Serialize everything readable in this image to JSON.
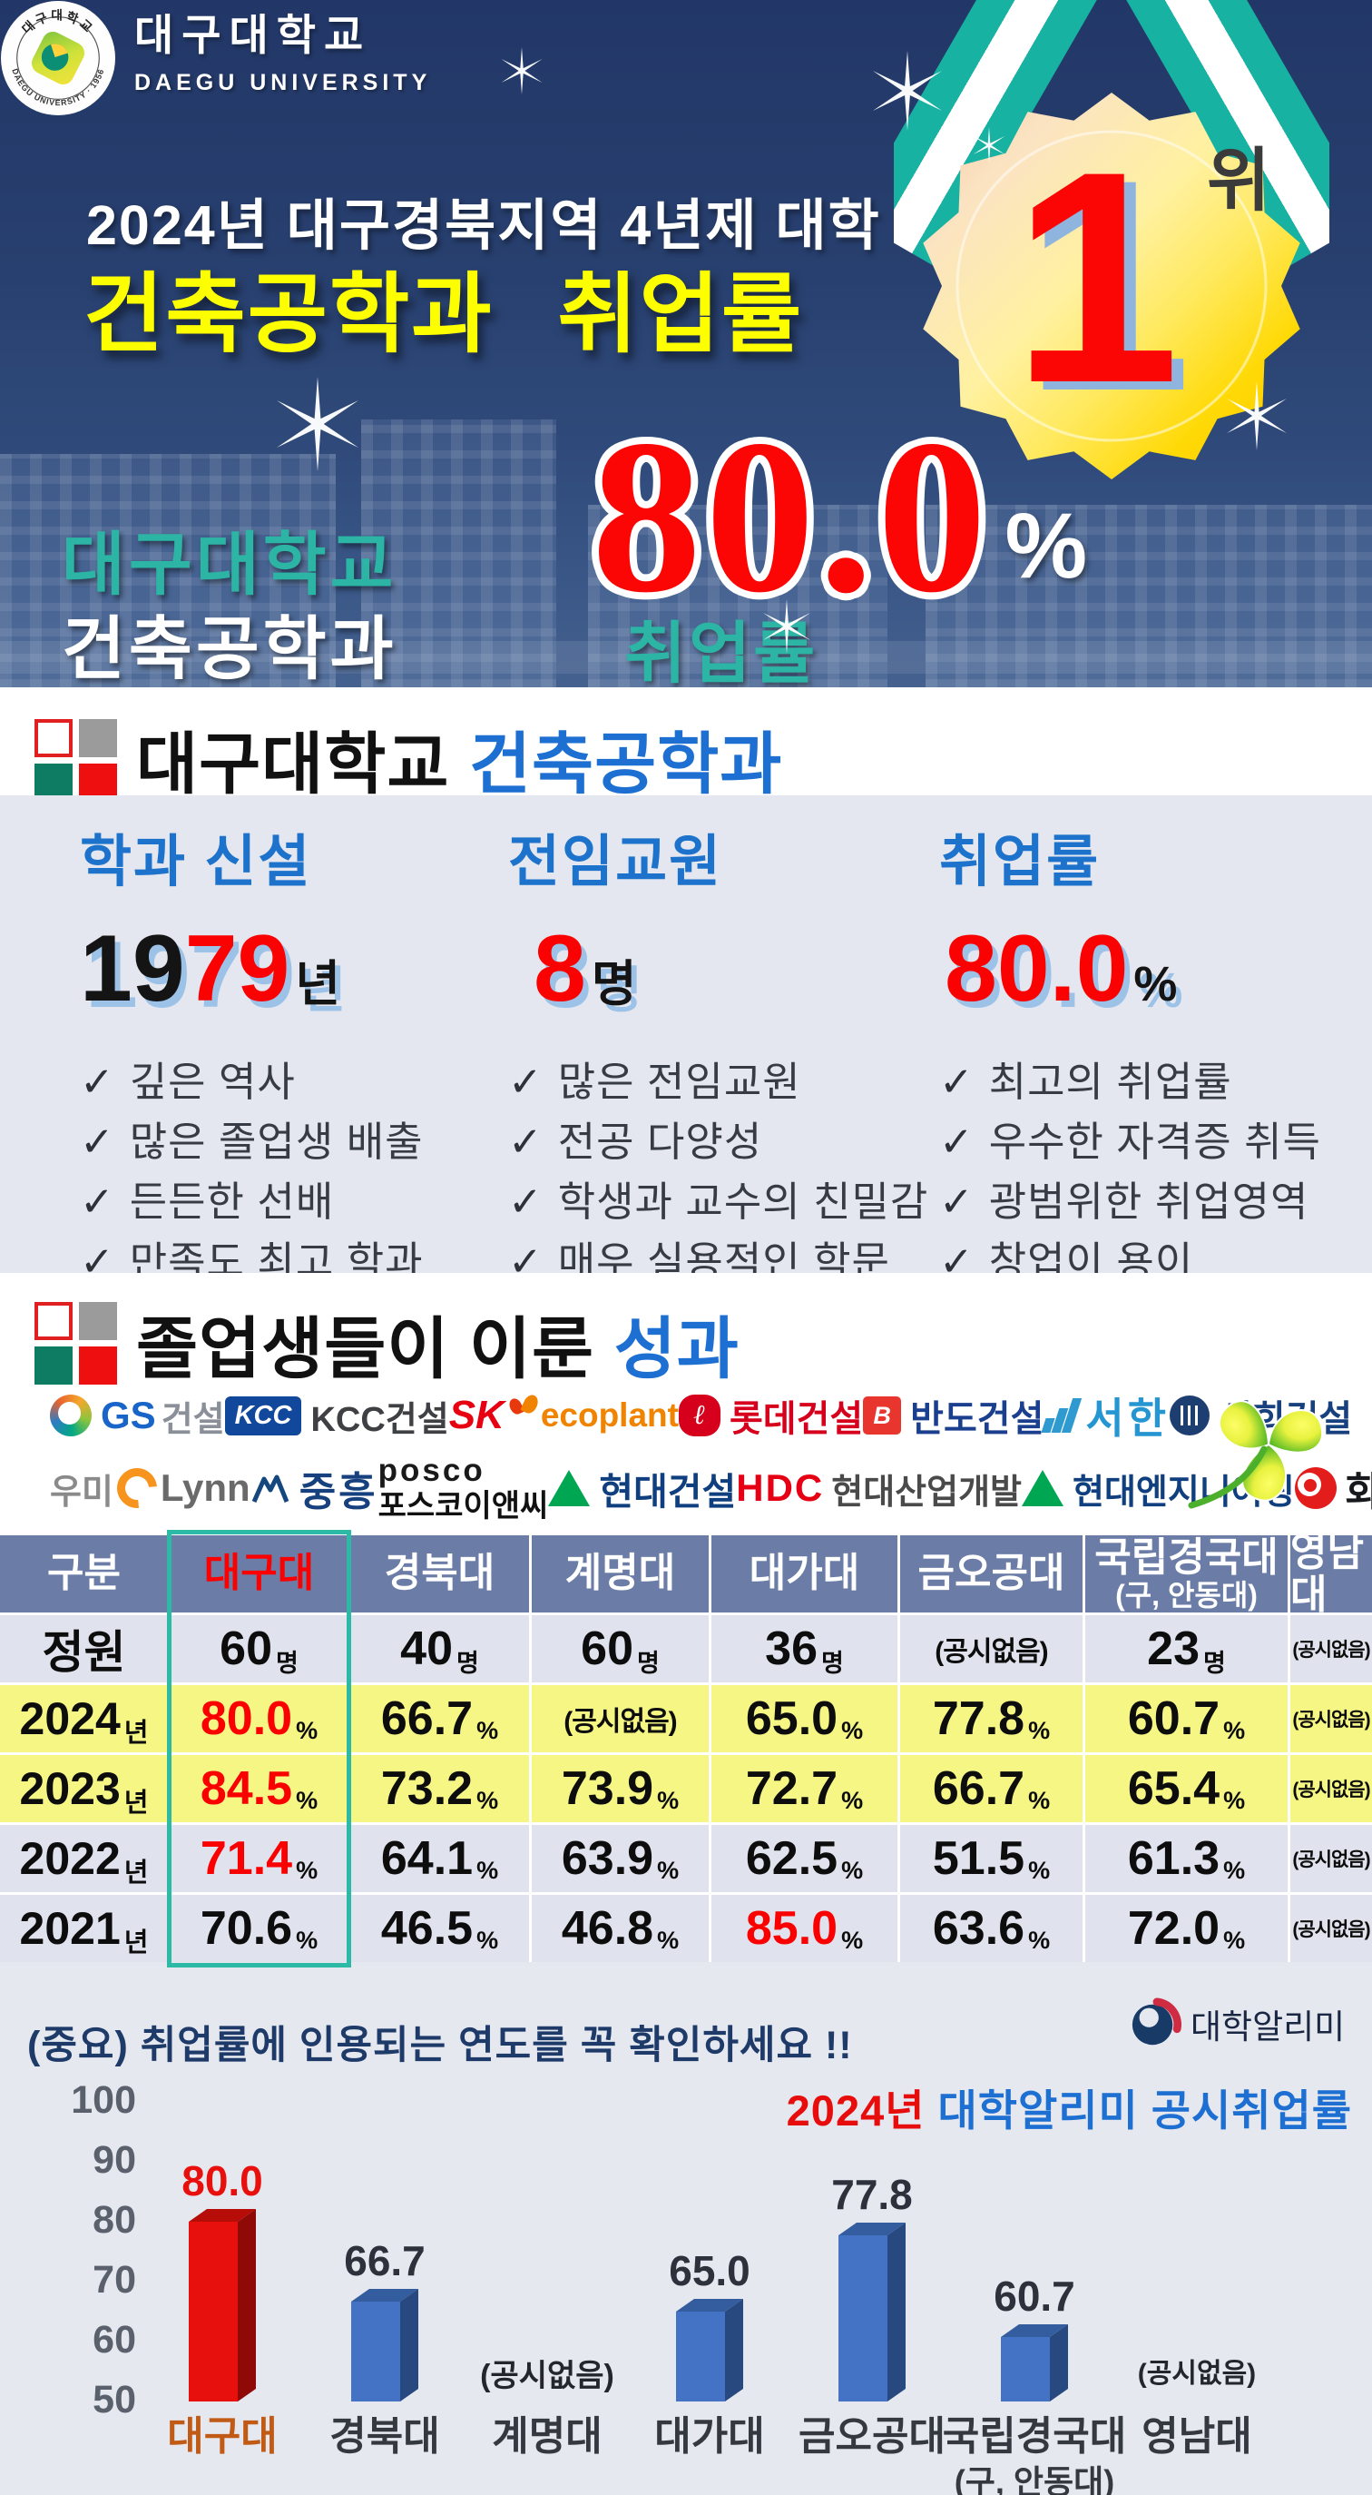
{
  "hero": {
    "seal_top": "대구대학교",
    "seal_bottom": "DAEGU UNIVERSITY · 1956",
    "university_kr": "대구대학교",
    "university_en": "DAEGU UNIVERSITY",
    "title_line1": "2024년 대구경북지역 4년제 대학",
    "title_line2": "건축공학과 취업률",
    "rank_number": "1",
    "rank_suffix": "위",
    "sub_university": "대구대학교",
    "sub_department": "건축공학과",
    "sub_metric": "취업률",
    "rate_value": "80.0",
    "rate_unit": "%"
  },
  "dept_section": {
    "title_black": "대구대학교",
    "title_blue": "건축공학과",
    "check_glyph": "✓",
    "columns": [
      {
        "heading": "학과 신설",
        "parts": [
          {
            "t": "19",
            "c": "k"
          },
          {
            "t": "79",
            "c": "r"
          }
        ],
        "suffix": "년",
        "items": [
          "깊은 역사",
          "많은 졸업생 배출",
          "든든한 선배",
          "만족도 최고 학과"
        ]
      },
      {
        "heading": "전임교원",
        "parts": [
          {
            "t": "8",
            "c": "r"
          }
        ],
        "suffix": "명",
        "items": [
          "많은 전임교원",
          "전공 다양성",
          "학생과 교수의 친밀감",
          "매우 실용적인 학문"
        ]
      },
      {
        "heading": "취업률",
        "parts": [
          {
            "t": "80.0",
            "c": "r"
          }
        ],
        "suffix": "%",
        "items": [
          "최고의 취업률",
          "우수한 자격증 취득",
          "광범위한 취업영역",
          "창업이 용이"
        ]
      }
    ]
  },
  "outcome_section": {
    "title_black": "졸업생들이 이룬",
    "title_blue": "성과",
    "companies_row1": [
      {
        "name": "GS건설",
        "t1": "GS",
        "t2": "건설"
      },
      {
        "name": "KCC건설",
        "badge": "KCC",
        "t2": "KCC건설"
      },
      {
        "name": "SK에코플랜트",
        "t1": "SK",
        "t2": "ecoplant"
      },
      {
        "name": "롯데건설",
        "badge": "ℓ",
        "t2": "롯데건설"
      },
      {
        "name": "반도건설",
        "badge": "B",
        "t2": "반도건설"
      },
      {
        "name": "서한",
        "t2": "서한"
      },
      {
        "name": "서희건설",
        "t2": "서희건설"
      }
    ],
    "companies_row2": [
      {
        "name": "우미건설",
        "t1": "우미",
        "t2": "Lynn"
      },
      {
        "name": "중흥건설",
        "t2": "중흥"
      },
      {
        "name": "포스코이앤씨",
        "t1": "posco",
        "t2": "포스코이앤씨"
      },
      {
        "name": "현대건설",
        "t2": "현대건설"
      },
      {
        "name": "HDC현대산업개발",
        "t1": "HDC",
        "t2": "현대산업개발"
      },
      {
        "name": "현대엔지니어링",
        "t2": "현대엔지니어링"
      },
      {
        "name": "화성산업",
        "t2": "화 성"
      }
    ]
  },
  "table": {
    "na_text": "(공시없음)",
    "headers": [
      {
        "label": "구분"
      },
      {
        "label": "대구대",
        "highlight": true
      },
      {
        "label": "경북대"
      },
      {
        "label": "계명대"
      },
      {
        "label": "대가대"
      },
      {
        "label": "금오공대"
      },
      {
        "label": "국립경국대",
        "sub": "(구, 안동대)"
      },
      {
        "label": "영남대"
      }
    ],
    "rows": [
      {
        "label": "정원",
        "suffix": "",
        "bg": "gray",
        "cells": [
          {
            "v": "60",
            "s": "명"
          },
          {
            "v": "40",
            "s": "명"
          },
          {
            "v": "60",
            "s": "명"
          },
          {
            "v": "36",
            "s": "명"
          },
          {
            "na": true
          },
          {
            "v": "23",
            "s": "명"
          },
          {
            "na": true
          }
        ]
      },
      {
        "label": "2024",
        "suffix": "년",
        "bg": "yellow",
        "cells": [
          {
            "v": "80.0",
            "s": "%",
            "red": true
          },
          {
            "v": "66.7",
            "s": "%"
          },
          {
            "na": true
          },
          {
            "v": "65.0",
            "s": "%"
          },
          {
            "v": "77.8",
            "s": "%"
          },
          {
            "v": "60.7",
            "s": "%"
          },
          {
            "na": true
          }
        ]
      },
      {
        "label": "2023",
        "suffix": "년",
        "bg": "yellow",
        "cells": [
          {
            "v": "84.5",
            "s": "%",
            "red": true
          },
          {
            "v": "73.2",
            "s": "%"
          },
          {
            "v": "73.9",
            "s": "%"
          },
          {
            "v": "72.7",
            "s": "%"
          },
          {
            "v": "66.7",
            "s": "%"
          },
          {
            "v": "65.4",
            "s": "%"
          },
          {
            "na": true
          }
        ]
      },
      {
        "label": "2022",
        "suffix": "년",
        "bg": "gray",
        "cells": [
          {
            "v": "71.4",
            "s": "%",
            "red": true
          },
          {
            "v": "64.1",
            "s": "%"
          },
          {
            "v": "63.9",
            "s": "%"
          },
          {
            "v": "62.5",
            "s": "%"
          },
          {
            "v": "51.5",
            "s": "%"
          },
          {
            "v": "61.3",
            "s": "%"
          },
          {
            "na": true
          }
        ]
      },
      {
        "label": "2021",
        "suffix": "년",
        "bg": "gray",
        "cells": [
          {
            "v": "70.6",
            "s": "%"
          },
          {
            "v": "46.5",
            "s": "%"
          },
          {
            "v": "46.8",
            "s": "%"
          },
          {
            "v": "85.0",
            "s": "%",
            "red": true
          },
          {
            "v": "63.6",
            "s": "%"
          },
          {
            "v": "72.0",
            "s": "%"
          },
          {
            "na": true
          }
        ]
      }
    ]
  },
  "footer": {
    "note": "(중요) 취업률에 인용되는 연도를 꼭 확인하세요 !!",
    "source_name": "대학알리미"
  },
  "chart_data": {
    "type": "bar",
    "title": "2024년 대학알리미 공시취업률",
    "title_red": "2024년 ",
    "title_blue": "대학알리미 공시취업률",
    "categories": [
      "대구대",
      "경북대",
      "계명대",
      "대가대",
      "금오공대",
      "국립경국대",
      "영남대"
    ],
    "category_sublabels": [
      null,
      null,
      null,
      null,
      null,
      "(구, 안동대)",
      null
    ],
    "values": [
      80.0,
      66.7,
      null,
      65.0,
      77.8,
      60.7,
      null
    ],
    "value_labels": [
      "80.0",
      "66.7",
      "(공시없음)",
      "65.0",
      "77.8",
      "60.7",
      "(공시없음)"
    ],
    "na_text": "(공시없음)",
    "ylim": [
      50,
      100
    ],
    "yticks": [
      100,
      90,
      80,
      70,
      60,
      50
    ],
    "highlight_index": 0,
    "colors": {
      "bar_default": "#4472c4",
      "bar_highlight": "#e8100c",
      "category_highlight": "#c05a15"
    }
  }
}
